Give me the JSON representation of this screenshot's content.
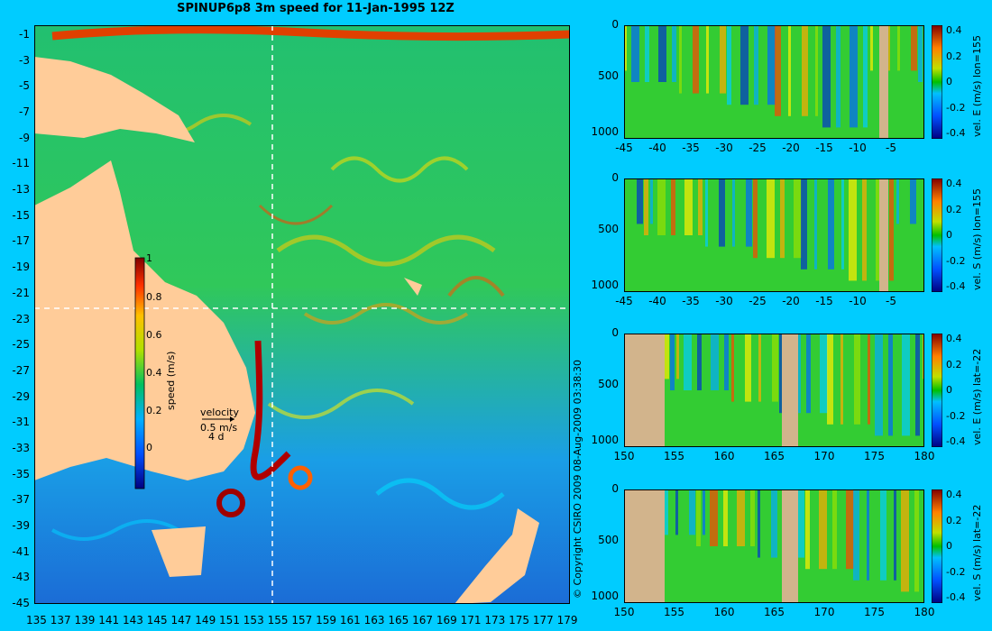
{
  "title": "SPINUP6p8 3m speed for 11-Jan-1995 12Z",
  "copyright": "© Copyright CSIRO 2009   08-Aug-2009 03:38:30",
  "colors": {
    "background": "#00ccff",
    "land": "#ffcc99",
    "section_land": "#d2b48c",
    "guide": "#ffffff"
  },
  "map": {
    "lon_ticks": [
      "135",
      "137",
      "139",
      "141",
      "143",
      "145",
      "147",
      "149",
      "151",
      "153",
      "155",
      "157",
      "159",
      "161",
      "163",
      "165",
      "167",
      "169",
      "171",
      "173",
      "175",
      "177",
      "179"
    ],
    "lat_ticks": [
      "-1",
      "-3",
      "-5",
      "-7",
      "-9",
      "-11",
      "-13",
      "-15",
      "-17",
      "-19",
      "-21",
      "-23",
      "-25",
      "-27",
      "-29",
      "-31",
      "-33",
      "-35",
      "-37",
      "-39",
      "-41",
      "-43",
      "-45"
    ],
    "colorbar": {
      "label": "speed (m/s)",
      "ticks": [
        "1",
        "0.8",
        "0.6",
        "0.4",
        "0.2",
        "0"
      ]
    },
    "velocity_key": {
      "title": "velocity",
      "speed": "0.5 m/s",
      "days": "4 d"
    }
  },
  "panels": [
    {
      "ylabel": "vel. E (m/s) lon=155",
      "xticks": [
        "-45",
        "-40",
        "-35",
        "-30",
        "-25",
        "-20",
        "-15",
        "-10",
        "-5"
      ],
      "yticks": [
        "0",
        "500",
        "1000"
      ],
      "cticks": [
        "0.4",
        "0.2",
        "0",
        "-0.2",
        "-0.4"
      ]
    },
    {
      "ylabel": "vel. S (m/s) lon=155",
      "xticks": [
        "-45",
        "-40",
        "-35",
        "-30",
        "-25",
        "-20",
        "-15",
        "-10",
        "-5"
      ],
      "yticks": [
        "0",
        "500",
        "1000"
      ],
      "cticks": [
        "0.4",
        "0.2",
        "0",
        "-0.2",
        "-0.4"
      ]
    },
    {
      "ylabel": "vel. E (m/s) lat=-22",
      "xticks": [
        "150",
        "155",
        "160",
        "165",
        "170",
        "175",
        "180"
      ],
      "yticks": [
        "0",
        "500",
        "1000"
      ],
      "cticks": [
        "0.4",
        "0.2",
        "0",
        "-0.2",
        "-0.4"
      ]
    },
    {
      "ylabel": "vel. S (m/s) lat=-22",
      "xticks": [
        "150",
        "155",
        "160",
        "165",
        "170",
        "175",
        "180"
      ],
      "yticks": [
        "0",
        "500",
        "1000"
      ],
      "cticks": [
        "0.4",
        "0.2",
        "0",
        "-0.2",
        "-0.4"
      ]
    }
  ],
  "chart_data": [
    {
      "type": "heatmap",
      "title": "SPINUP6p8 3m speed for 11-Jan-1995 12Z",
      "x_range": [
        135,
        180
      ],
      "y_range": [
        -45,
        0
      ],
      "colorbar_label": "speed (m/s)",
      "colorbar_range": [
        0,
        1
      ],
      "section_lines": {
        "lon": 155,
        "lat": -22
      }
    },
    {
      "type": "heatmap",
      "ylabel": "vel. E (m/s) lon=155",
      "x_range": [
        -45,
        0
      ],
      "depth_range": [
        0,
        1050
      ],
      "colorbar_range": [
        -0.4,
        0.4
      ]
    },
    {
      "type": "heatmap",
      "ylabel": "vel. S (m/s) lon=155",
      "x_range": [
        -45,
        0
      ],
      "depth_range": [
        0,
        1050
      ],
      "colorbar_range": [
        -0.4,
        0.4
      ]
    },
    {
      "type": "heatmap",
      "ylabel": "vel. E (m/s) lat=-22",
      "x_range": [
        150,
        180
      ],
      "depth_range": [
        0,
        1050
      ],
      "colorbar_range": [
        -0.4,
        0.4
      ]
    },
    {
      "type": "heatmap",
      "ylabel": "vel. S (m/s) lat=-22",
      "x_range": [
        150,
        180
      ],
      "depth_range": [
        0,
        1050
      ],
      "colorbar_range": [
        -0.4,
        0.4
      ]
    }
  ]
}
